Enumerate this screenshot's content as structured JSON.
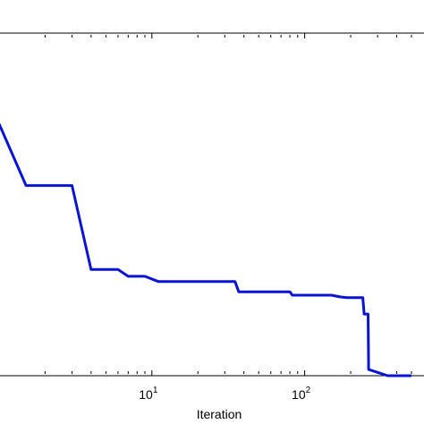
{
  "chart_data": {
    "type": "line",
    "title": "",
    "xlabel": "Iteration",
    "ylabel": "",
    "x_scale": "log",
    "xlim": [
      1,
      500
    ],
    "ylim": [
      0,
      1
    ],
    "x_ticks": [
      {
        "value": 10,
        "base": "10",
        "exp": "1"
      },
      {
        "value": 100,
        "base": "10",
        "exp": "2"
      }
    ],
    "grid": false,
    "series": [
      {
        "color": "#0a14d2",
        "x": [
          1.0,
          1.5,
          3.0,
          4.0,
          6.0,
          7.0,
          9.0,
          11.0,
          35.0,
          37.0,
          80.0,
          83.0,
          150.0,
          170.0,
          190.0,
          240.0,
          245.0,
          260.0,
          262.0,
          350.0,
          500.0
        ],
        "y": [
          0.735,
          0.555,
          0.555,
          0.31,
          0.31,
          0.29,
          0.29,
          0.275,
          0.275,
          0.245,
          0.245,
          0.235,
          0.235,
          0.23,
          0.228,
          0.228,
          0.18,
          0.18,
          0.018,
          0.0,
          0.0
        ]
      }
    ]
  }
}
